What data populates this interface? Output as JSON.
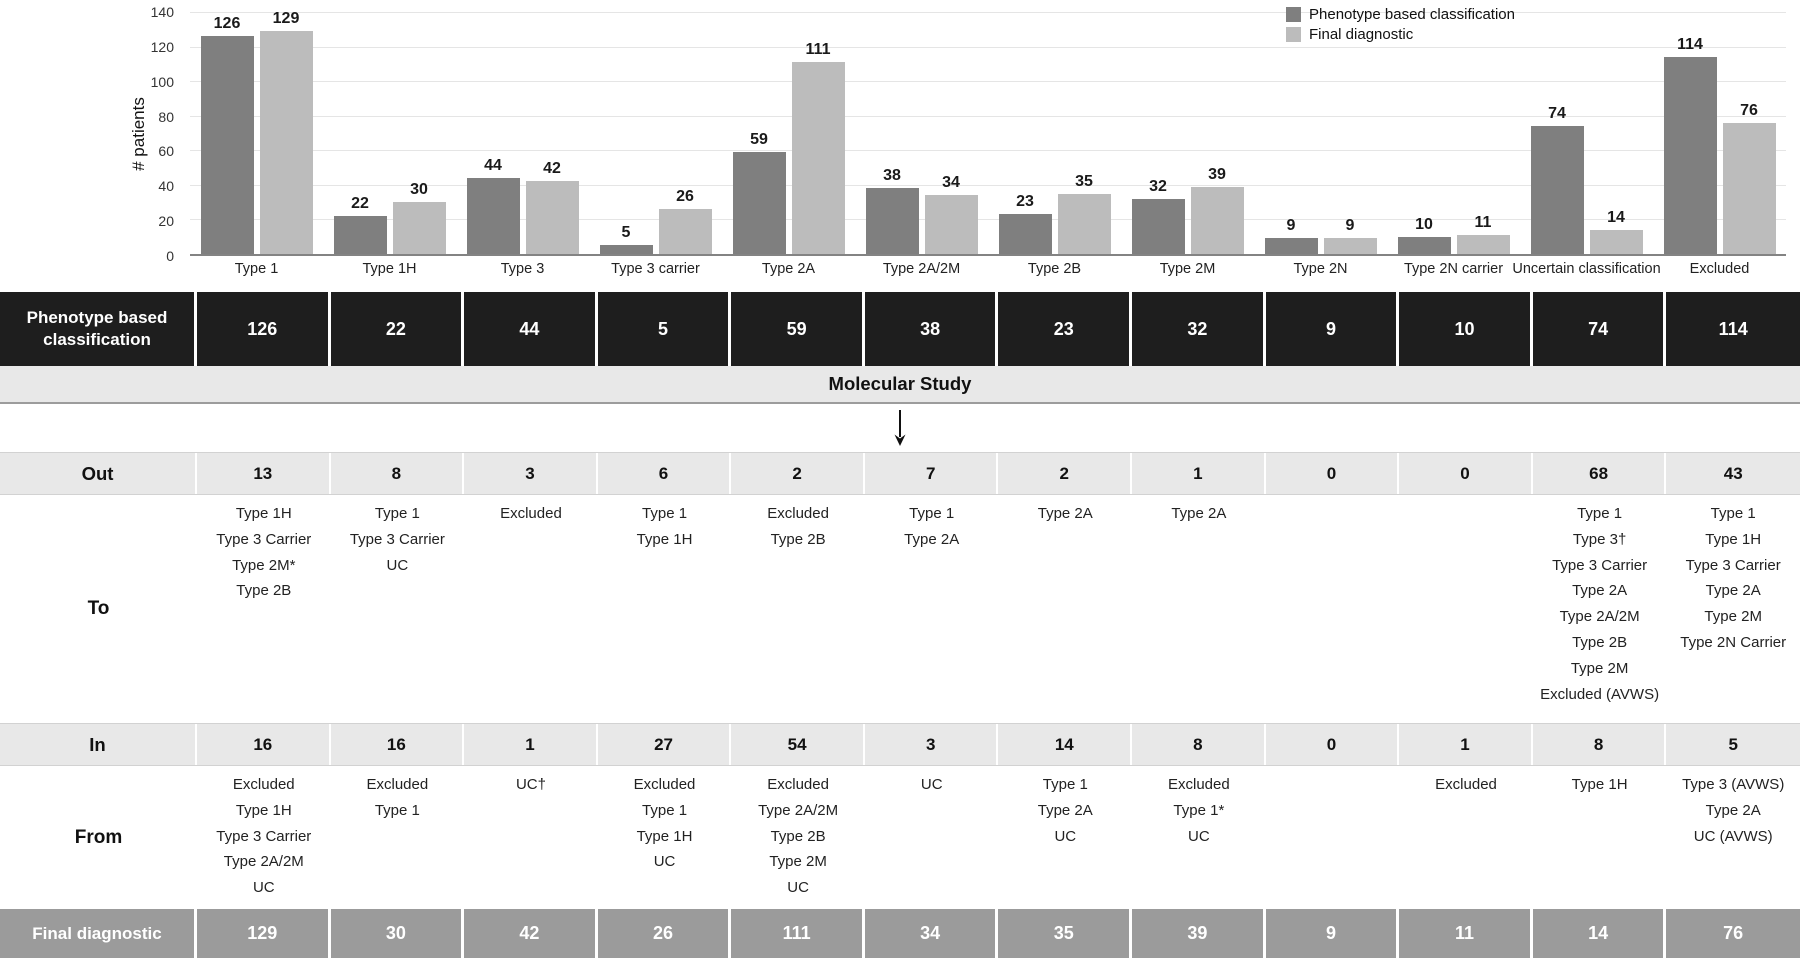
{
  "chart_data": {
    "type": "bar",
    "title": "",
    "xlabel": "",
    "ylabel": "# patients",
    "ylim": [
      0,
      140
    ],
    "yticks": [
      0,
      20,
      40,
      60,
      80,
      100,
      120,
      140
    ],
    "grid": true,
    "legend_position": "top-right",
    "categories": [
      "Type 1",
      "Type 1H",
      "Type 3",
      "Type 3 carrier",
      "Type 2A",
      "Type 2A/2M",
      "Type 2B",
      "Type 2M",
      "Type 2N",
      "Type 2N carrier",
      "Uncertain classification",
      "Excluded"
    ],
    "series": [
      {
        "name": "Phenotype based classification",
        "color": "#7f7f7f",
        "values": [
          126,
          22,
          44,
          5,
          59,
          38,
          23,
          32,
          9,
          10,
          74,
          114
        ]
      },
      {
        "name": "Final diagnostic",
        "color": "#bcbcbc",
        "values": [
          129,
          30,
          42,
          26,
          111,
          34,
          35,
          39,
          9,
          11,
          14,
          76
        ]
      }
    ]
  },
  "colors": {
    "phenotype_row_bg": "#1e1e1e",
    "band_bg": "#e8e8e8",
    "final_row_bg": "#9b9b9b",
    "bar_dark": "#7f7f7f",
    "bar_light": "#bcbcbc"
  },
  "table": {
    "phenotype_row": {
      "label": "Phenotype based classification",
      "values": [
        126,
        22,
        44,
        5,
        59,
        38,
        23,
        32,
        9,
        10,
        74,
        114
      ]
    },
    "molecular_label": "Molecular Study",
    "out_row": {
      "label": "Out",
      "values": [
        13,
        8,
        3,
        6,
        2,
        7,
        2,
        1,
        0,
        0,
        68,
        43
      ]
    },
    "to_row": {
      "label": "To",
      "lists": [
        [
          "Type 1H",
          "Type 3 Carrier",
          "Type 2M*",
          "Type 2B"
        ],
        [
          "Type 1",
          "Type 3 Carrier",
          "UC"
        ],
        [
          "Excluded"
        ],
        [
          "Type 1",
          "Type 1H"
        ],
        [
          "Excluded",
          "Type 2B"
        ],
        [
          "Type 1",
          "Type 2A"
        ],
        [
          "Type 2A"
        ],
        [
          "Type 2A"
        ],
        [],
        [],
        [
          "Type 1",
          "Type 3†",
          "Type 3 Carrier",
          "Type 2A",
          "Type 2A/2M",
          "Type 2B",
          "Type 2M",
          "Excluded (AVWS)"
        ],
        [
          "Type 1",
          "Type 1H",
          "Type 3 Carrier",
          "Type 2A",
          "Type 2M",
          "Type 2N Carrier"
        ]
      ]
    },
    "in_row": {
      "label": "In",
      "values": [
        16,
        16,
        1,
        27,
        54,
        3,
        14,
        8,
        0,
        1,
        8,
        5
      ]
    },
    "from_row": {
      "label": "From",
      "lists": [
        [
          "Excluded",
          "Type 1H",
          "Type 3 Carrier",
          "Type 2A/2M",
          "UC"
        ],
        [
          "Excluded",
          "Type 1"
        ],
        [
          "UC†"
        ],
        [
          "Excluded",
          "Type 1",
          "Type 1H",
          "UC"
        ],
        [
          "Excluded",
          "Type 2A/2M",
          "Type 2B",
          "Type 2M",
          "UC"
        ],
        [
          "UC"
        ],
        [
          "Type 1",
          "Type 2A",
          "UC"
        ],
        [
          "Excluded",
          "Type 1*",
          "UC"
        ],
        [],
        [
          "Excluded"
        ],
        [
          "Type 1H"
        ],
        [
          "Type 3 (AVWS)",
          "Type 2A",
          "UC (AVWS)"
        ]
      ]
    },
    "final_row": {
      "label": "Final diagnostic",
      "values": [
        129,
        30,
        42,
        26,
        111,
        34,
        35,
        39,
        9,
        11,
        14,
        76
      ]
    }
  }
}
